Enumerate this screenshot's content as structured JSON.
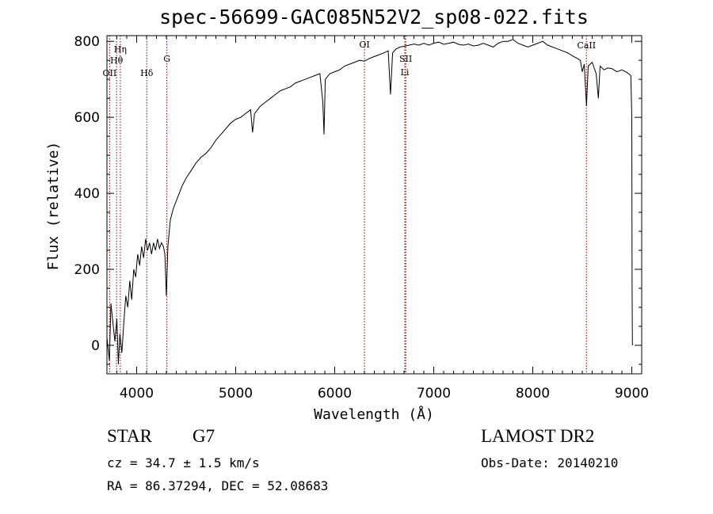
{
  "chart_data": {
    "type": "line",
    "title": "spec-56699-GAC085N52V2_sp08-022.fits",
    "xlabel": "Wavelength (Å)",
    "ylabel": "Flux (relative)",
    "xlim": [
      3700,
      9100
    ],
    "ylim": [
      -75,
      815
    ],
    "xticks": [
      4000,
      5000,
      6000,
      7000,
      8000,
      9000
    ],
    "yticks": [
      0,
      200,
      400,
      600,
      800
    ],
    "xtick_labels": [
      "4000",
      "5000",
      "6000",
      "7000",
      "8000",
      "9000"
    ],
    "ytick_labels": [
      "0",
      "200",
      "400",
      "600",
      "800"
    ],
    "line_color": "#000000",
    "marker_color": "#8b0000",
    "spectral_lines": [
      {
        "label": "Hη",
        "wavelength": 3835
      },
      {
        "label": "Hθ",
        "wavelength": 3797
      },
      {
        "label": "OII",
        "wavelength": 3727
      },
      {
        "label": "Hδ",
        "wavelength": 4102
      },
      {
        "label": "G",
        "wavelength": 4305
      },
      {
        "label": "OI",
        "wavelength": 6300
      },
      {
        "label": "SII",
        "wavelength": 6717
      },
      {
        "label": "Li",
        "wavelength": 6708
      },
      {
        "label": "CaII",
        "wavelength": 8542
      }
    ],
    "series": [
      {
        "points": [
          [
            3700,
            20
          ],
          [
            3725,
            -40
          ],
          [
            3740,
            110
          ],
          [
            3760,
            60
          ],
          [
            3780,
            10
          ],
          [
            3800,
            70
          ],
          [
            3815,
            -50
          ],
          [
            3830,
            30
          ],
          [
            3850,
            -20
          ],
          [
            3870,
            60
          ],
          [
            3890,
            130
          ],
          [
            3910,
            100
          ],
          [
            3930,
            170
          ],
          [
            3950,
            120
          ],
          [
            3970,
            200
          ],
          [
            3990,
            180
          ],
          [
            4010,
            240
          ],
          [
            4030,
            210
          ],
          [
            4050,
            260
          ],
          [
            4070,
            230
          ],
          [
            4090,
            280
          ],
          [
            4110,
            250
          ],
          [
            4130,
            270
          ],
          [
            4150,
            240
          ],
          [
            4170,
            270
          ],
          [
            4190,
            250
          ],
          [
            4210,
            280
          ],
          [
            4230,
            255
          ],
          [
            4250,
            270
          ],
          [
            4270,
            260
          ],
          [
            4285,
            240
          ],
          [
            4300,
            130
          ],
          [
            4315,
            260
          ],
          [
            4340,
            330
          ],
          [
            4370,
            360
          ],
          [
            4400,
            380
          ],
          [
            4430,
            400
          ],
          [
            4460,
            420
          ],
          [
            4500,
            440
          ],
          [
            4550,
            460
          ],
          [
            4600,
            480
          ],
          [
            4650,
            495
          ],
          [
            4700,
            505
          ],
          [
            4750,
            520
          ],
          [
            4800,
            540
          ],
          [
            4850,
            555
          ],
          [
            4900,
            570
          ],
          [
            4950,
            585
          ],
          [
            5000,
            595
          ],
          [
            5050,
            600
          ],
          [
            5100,
            610
          ],
          [
            5150,
            620
          ],
          [
            5170,
            560
          ],
          [
            5190,
            610
          ],
          [
            5250,
            630
          ],
          [
            5300,
            640
          ],
          [
            5350,
            650
          ],
          [
            5400,
            660
          ],
          [
            5450,
            670
          ],
          [
            5500,
            675
          ],
          [
            5550,
            680
          ],
          [
            5600,
            690
          ],
          [
            5650,
            695
          ],
          [
            5700,
            700
          ],
          [
            5750,
            705
          ],
          [
            5800,
            710
          ],
          [
            5850,
            715
          ],
          [
            5880,
            640
          ],
          [
            5892,
            555
          ],
          [
            5905,
            700
          ],
          [
            5950,
            715
          ],
          [
            6000,
            720
          ],
          [
            6050,
            725
          ],
          [
            6100,
            735
          ],
          [
            6150,
            740
          ],
          [
            6200,
            745
          ],
          [
            6250,
            750
          ],
          [
            6300,
            748
          ],
          [
            6350,
            755
          ],
          [
            6400,
            760
          ],
          [
            6450,
            765
          ],
          [
            6500,
            770
          ],
          [
            6540,
            775
          ],
          [
            6563,
            660
          ],
          [
            6585,
            770
          ],
          [
            6620,
            780
          ],
          [
            6660,
            785
          ],
          [
            6700,
            787
          ],
          [
            6750,
            790
          ],
          [
            6800,
            793
          ],
          [
            6850,
            790
          ],
          [
            6900,
            795
          ],
          [
            6950,
            790
          ],
          [
            7000,
            795
          ],
          [
            7050,
            798
          ],
          [
            7100,
            792
          ],
          [
            7150,
            795
          ],
          [
            7200,
            798
          ],
          [
            7250,
            792
          ],
          [
            7300,
            790
          ],
          [
            7350,
            793
          ],
          [
            7400,
            788
          ],
          [
            7450,
            790
          ],
          [
            7500,
            795
          ],
          [
            7550,
            790
          ],
          [
            7600,
            785
          ],
          [
            7650,
            795
          ],
          [
            7700,
            800
          ],
          [
            7750,
            800
          ],
          [
            7800,
            805
          ],
          [
            7850,
            795
          ],
          [
            7900,
            790
          ],
          [
            7950,
            785
          ],
          [
            8000,
            790
          ],
          [
            8050,
            795
          ],
          [
            8100,
            800
          ],
          [
            8150,
            790
          ],
          [
            8200,
            785
          ],
          [
            8250,
            780
          ],
          [
            8300,
            775
          ],
          [
            8350,
            770
          ],
          [
            8400,
            762
          ],
          [
            8450,
            755
          ],
          [
            8480,
            750
          ],
          [
            8500,
            720
          ],
          [
            8520,
            740
          ],
          [
            8542,
            630
          ],
          [
            8560,
            735
          ],
          [
            8600,
            745
          ],
          [
            8640,
            715
          ],
          [
            8662,
            650
          ],
          [
            8680,
            735
          ],
          [
            8720,
            725
          ],
          [
            8760,
            730
          ],
          [
            8800,
            728
          ],
          [
            8850,
            720
          ],
          [
            8900,
            725
          ],
          [
            8950,
            718
          ],
          [
            8990,
            710
          ],
          [
            9000,
            600
          ],
          [
            9003,
            140
          ],
          [
            9006,
            0
          ]
        ]
      }
    ]
  },
  "info": {
    "obj_class": "STAR",
    "subclass": "G7",
    "survey": "LAMOST DR2",
    "cz": "cz = 34.7 ± 1.5 km/s",
    "obs_date": "Obs-Date: 20140210",
    "radec": "RA =  86.37294, DEC =  52.08683"
  }
}
